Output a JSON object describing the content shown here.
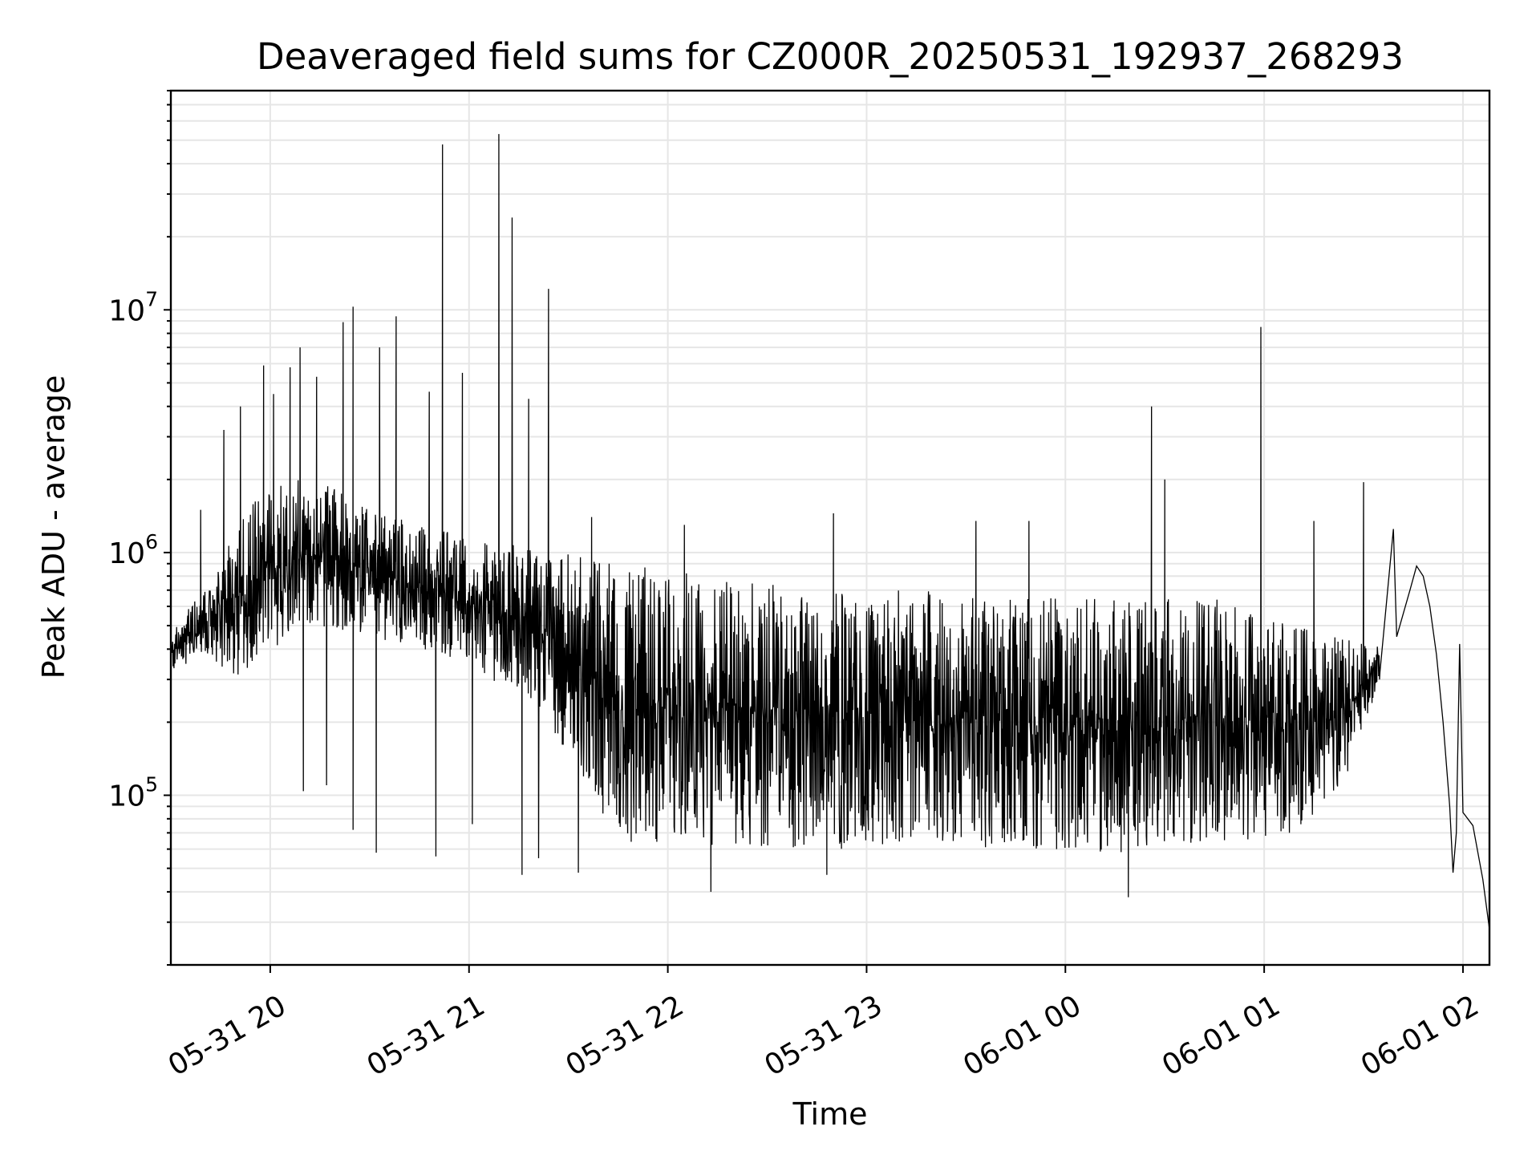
{
  "chart_data": {
    "type": "line",
    "title": "Deaveraged field sums for CZ000R_20250531_192937_268293",
    "xlabel": "Time",
    "ylabel": "Peak ADU - average",
    "x_start": "2025-05-31 19:29:37",
    "x_end": "2025-06-01 02:08:00",
    "xlim": [
      "2025-05-31 19:30",
      "2025-06-01 02:08"
    ],
    "xticks": [
      {
        "time": "2025-05-31 20:00",
        "label": "05-31 20"
      },
      {
        "time": "2025-05-31 21:00",
        "label": "05-31 21"
      },
      {
        "time": "2025-05-31 22:00",
        "label": "05-31 22"
      },
      {
        "time": "2025-05-31 23:00",
        "label": "05-31 23"
      },
      {
        "time": "2025-06-01 00:00",
        "label": "06-01 00"
      },
      {
        "time": "2025-06-01 01:00",
        "label": "06-01 01"
      },
      {
        "time": "2025-06-01 02:00",
        "label": "06-01 02"
      }
    ],
    "yscale": "log",
    "ylim": [
      20000,
      80000000
    ],
    "yticks": [
      {
        "value": 100000,
        "base": "10",
        "exp": "5"
      },
      {
        "value": 1000000,
        "base": "10",
        "exp": "6"
      },
      {
        "value": 10000000,
        "base": "10",
        "exp": "7"
      }
    ],
    "grid": true,
    "line_color": "#000000",
    "grid_color": "#e6e6e6",
    "envelope": [
      {
        "t": "2025-05-31 19:30",
        "lo": 320000,
        "hi": 480000
      },
      {
        "t": "2025-05-31 19:40",
        "lo": 380000,
        "hi": 700000
      },
      {
        "t": "2025-05-31 19:50",
        "lo": 300000,
        "hi": 1300000
      },
      {
        "t": "2025-05-31 20:00",
        "lo": 400000,
        "hi": 2000000
      },
      {
        "t": "2025-05-31 20:15",
        "lo": 500000,
        "hi": 2000000
      },
      {
        "t": "2025-05-31 20:30",
        "lo": 450000,
        "hi": 1500000
      },
      {
        "t": "2025-05-31 20:45",
        "lo": 400000,
        "hi": 1300000
      },
      {
        "t": "2025-05-31 21:00",
        "lo": 350000,
        "hi": 1200000
      },
      {
        "t": "2025-05-31 21:15",
        "lo": 250000,
        "hi": 1100000
      },
      {
        "t": "2025-05-31 21:30",
        "lo": 150000,
        "hi": 1000000
      },
      {
        "t": "2025-05-31 21:45",
        "lo": 65000,
        "hi": 900000
      },
      {
        "t": "2025-05-31 22:15",
        "lo": 60000,
        "hi": 800000
      },
      {
        "t": "2025-05-31 22:45",
        "lo": 60000,
        "hi": 700000
      },
      {
        "t": "2025-05-31 23:15",
        "lo": 60000,
        "hi": 700000
      },
      {
        "t": "2025-05-31 23:45",
        "lo": 60000,
        "hi": 650000
      },
      {
        "t": "2025-06-01 00:15",
        "lo": 58000,
        "hi": 650000
      },
      {
        "t": "2025-06-01 00:45",
        "lo": 62000,
        "hi": 650000
      },
      {
        "t": "2025-06-01 01:10",
        "lo": 70000,
        "hi": 500000
      },
      {
        "t": "2025-06-01 01:25",
        "lo": 120000,
        "hi": 450000
      },
      {
        "t": "2025-06-01 01:35",
        "lo": 300000,
        "hi": 420000
      }
    ],
    "tail": [
      {
        "t": "2025-06-01 01:35",
        "v": 350000
      },
      {
        "t": "2025-06-01 01:40",
        "v": 450000
      },
      {
        "t": "2025-06-01 01:44",
        "v": 700000
      },
      {
        "t": "2025-06-01 01:46",
        "v": 880000
      },
      {
        "t": "2025-06-01 01:48",
        "v": 800000
      },
      {
        "t": "2025-06-01 01:50",
        "v": 600000
      },
      {
        "t": "2025-06-01 01:52",
        "v": 380000
      },
      {
        "t": "2025-06-01 01:54",
        "v": 200000
      },
      {
        "t": "2025-06-01 01:56",
        "v": 90000
      },
      {
        "t": "2025-06-01 01:57",
        "v": 48000
      },
      {
        "t": "2025-06-01 01:58",
        "v": 70000
      },
      {
        "t": "2025-06-01 02:00",
        "v": 85000
      },
      {
        "t": "2025-06-01 02:03",
        "v": 75000
      },
      {
        "t": "2025-06-01 02:06",
        "v": 45000
      },
      {
        "t": "2025-06-01 02:08",
        "v": 28000
      }
    ],
    "spikes": [
      {
        "t": "2025-05-31 19:39",
        "v": 1500000
      },
      {
        "t": "2025-05-31 19:46",
        "v": 3200000
      },
      {
        "t": "2025-05-31 19:51",
        "v": 4000000
      },
      {
        "t": "2025-05-31 19:58",
        "v": 5900000
      },
      {
        "t": "2025-05-31 20:01",
        "v": 4500000
      },
      {
        "t": "2025-05-31 20:06",
        "v": 5800000
      },
      {
        "t": "2025-05-31 20:09",
        "v": 7000000
      },
      {
        "t": "2025-05-31 20:14",
        "v": 5300000
      },
      {
        "t": "2025-05-31 20:22",
        "v": 8900000
      },
      {
        "t": "2025-05-31 20:25",
        "v": 10300000
      },
      {
        "t": "2025-05-31 20:33",
        "v": 7000000
      },
      {
        "t": "2025-05-31 20:38",
        "v": 9400000
      },
      {
        "t": "2025-05-31 20:48",
        "v": 4600000
      },
      {
        "t": "2025-05-31 20:52",
        "v": 48000000
      },
      {
        "t": "2025-05-31 20:58",
        "v": 5500000
      },
      {
        "t": "2025-05-31 21:09",
        "v": 53000000
      },
      {
        "t": "2025-05-31 21:13",
        "v": 24000000
      },
      {
        "t": "2025-05-31 21:18",
        "v": 4300000
      },
      {
        "t": "2025-05-31 21:24",
        "v": 12200000
      },
      {
        "t": "2025-05-31 21:37",
        "v": 1400000
      },
      {
        "t": "2025-05-31 22:05",
        "v": 1300000
      },
      {
        "t": "2025-05-31 22:50",
        "v": 1450000
      },
      {
        "t": "2025-05-31 23:33",
        "v": 1350000
      },
      {
        "t": "2025-05-31 23:49",
        "v": 1350000
      },
      {
        "t": "2025-06-01 00:26",
        "v": 4000000
      },
      {
        "t": "2025-06-01 00:30",
        "v": 2000000
      },
      {
        "t": "2025-06-01 00:59",
        "v": 8500000
      },
      {
        "t": "2025-06-01 01:15",
        "v": 1350000
      },
      {
        "t": "2025-06-01 01:30",
        "v": 1950000
      },
      {
        "t": "2025-06-01 01:39",
        "v": 1250000
      },
      {
        "t": "2025-06-01 01:59",
        "v": 420000
      }
    ],
    "dips": [
      {
        "t": "2025-05-31 20:10",
        "v": 104000
      },
      {
        "t": "2025-05-31 20:17",
        "v": 110000
      },
      {
        "t": "2025-05-31 20:25",
        "v": 72000
      },
      {
        "t": "2025-05-31 20:32",
        "v": 58000
      },
      {
        "t": "2025-05-31 20:50",
        "v": 56000
      },
      {
        "t": "2025-05-31 21:01",
        "v": 76000
      },
      {
        "t": "2025-05-31 21:16",
        "v": 47000
      },
      {
        "t": "2025-05-31 21:21",
        "v": 55000
      },
      {
        "t": "2025-05-31 21:33",
        "v": 48000
      },
      {
        "t": "2025-05-31 22:13",
        "v": 40000
      },
      {
        "t": "2025-05-31 22:48",
        "v": 47000
      },
      {
        "t": "2025-06-01 00:19",
        "v": 38000
      }
    ]
  }
}
